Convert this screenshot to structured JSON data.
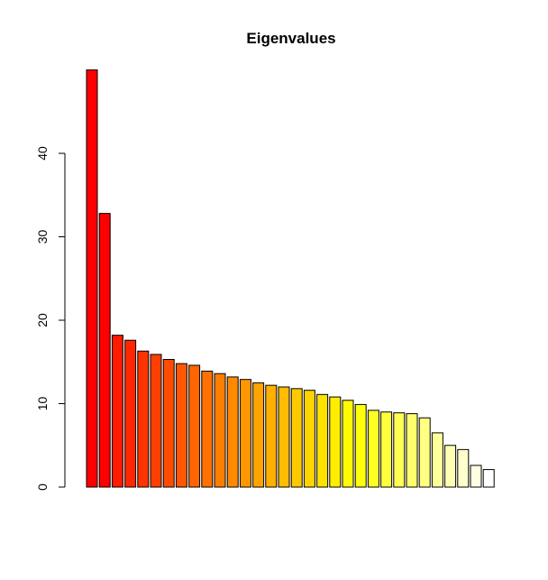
{
  "chart_data": {
    "type": "bar",
    "title": "Eigenvalues",
    "xlabel": "",
    "ylabel": "",
    "ylim": [
      0,
      50
    ],
    "y_ticks": [
      0,
      10,
      20,
      30,
      40
    ],
    "grid": false,
    "values": [
      50.0,
      32.8,
      18.2,
      17.6,
      16.3,
      15.9,
      15.3,
      14.8,
      14.6,
      13.9,
      13.6,
      13.2,
      12.9,
      12.5,
      12.2,
      12.0,
      11.8,
      11.6,
      11.1,
      10.8,
      10.4,
      9.9,
      9.2,
      9.0,
      8.9,
      8.8,
      8.3,
      6.5,
      5.0,
      4.5,
      2.6,
      2.1
    ],
    "colors": [
      "#FF0000",
      "#FF0000",
      "#FF1A00",
      "#FF2600",
      "#FF3300",
      "#FF3F00",
      "#FF4C00",
      "#FF5800",
      "#FF6500",
      "#FF7100",
      "#FF7E00",
      "#FF8A00",
      "#FF9700",
      "#FFA300",
      "#FFB000",
      "#FFBC00",
      "#FFC900",
      "#FFD500",
      "#FFE200",
      "#FFEE00",
      "#FFFB00",
      "#FFFF0C",
      "#FFFF24",
      "#FFFF3C",
      "#FFFF54",
      "#FFFF6C",
      "#FFFF84",
      "#FFFF9C",
      "#FFFFB4",
      "#FFFFCC",
      "#FFFFE4",
      "#FFFFFF"
    ]
  }
}
